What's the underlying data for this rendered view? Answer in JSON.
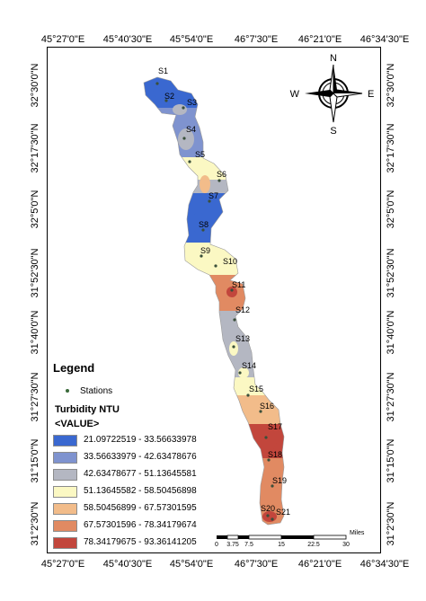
{
  "axes": {
    "top_longitudes": [
      "45°27'0\"E",
      "45°40'30\"E",
      "45°54'0\"E",
      "46°7'30\"E",
      "46°21'0\"E",
      "46°34'30\"E"
    ],
    "bottom_longitudes": [
      "45°27'0\"E",
      "45°40'30\"E",
      "45°54'0\"E",
      "46°7'30\"E",
      "46°21'0\"E",
      "46°34'30\"E"
    ],
    "left_latitudes": [
      "32°30'0\"N",
      "32°17'30\"N",
      "32°5'0\"N",
      "31°52'30\"N",
      "31°40'0\"N",
      "31°27'30\"N",
      "31°15'0\"N",
      "31°2'30\"N"
    ],
    "right_latitudes": [
      "32°30'0\"N",
      "32°17'30\"N",
      "32°5'0\"N",
      "31°52'30\"N",
      "31°40'0\"N",
      "31°27'30\"N",
      "31°15'0\"N",
      "31°2'30\"N"
    ]
  },
  "north_arrow": {
    "n": "N",
    "s": "S",
    "e": "E",
    "w": "W"
  },
  "stations": [
    {
      "label": "S1"
    },
    {
      "label": "S2"
    },
    {
      "label": "S3"
    },
    {
      "label": "S4"
    },
    {
      "label": "S5"
    },
    {
      "label": "S6"
    },
    {
      "label": "S7"
    },
    {
      "label": "S8"
    },
    {
      "label": "S9"
    },
    {
      "label": "S10"
    },
    {
      "label": "S11"
    },
    {
      "label": "S12"
    },
    {
      "label": "S13"
    },
    {
      "label": "S14"
    },
    {
      "label": "S15"
    },
    {
      "label": "S16"
    },
    {
      "label": "S17"
    },
    {
      "label": "S18"
    },
    {
      "label": "S19"
    },
    {
      "label": "S20"
    },
    {
      "label": "S21"
    }
  ],
  "legend": {
    "title": "Legend",
    "stations_label": "Stations",
    "layer_name": "Turbidity NTU",
    "field_name": "<VALUE>",
    "classes": [
      {
        "label": "21.09722519 - 33.56633978",
        "color": "#3a68d0"
      },
      {
        "label": "33.56633979 - 42.63478676",
        "color": "#7f93cf"
      },
      {
        "label": "42.63478677 - 51.13645581",
        "color": "#b4b7c2"
      },
      {
        "label": "51.13645582 - 58.50456898",
        "color": "#fbf8c3"
      },
      {
        "label": "58.50456899 - 67.57301595",
        "color": "#f2bc8a"
      },
      {
        "label": "67.57301596 - 78.34179674",
        "color": "#e18a62"
      },
      {
        "label": "78.34179675 - 93.36141205",
        "color": "#c2463c"
      }
    ]
  },
  "scale_bar": {
    "ticks": [
      "0",
      "3.75",
      "7.5",
      "15",
      "22.5",
      "30"
    ],
    "unit": "Miles"
  }
}
